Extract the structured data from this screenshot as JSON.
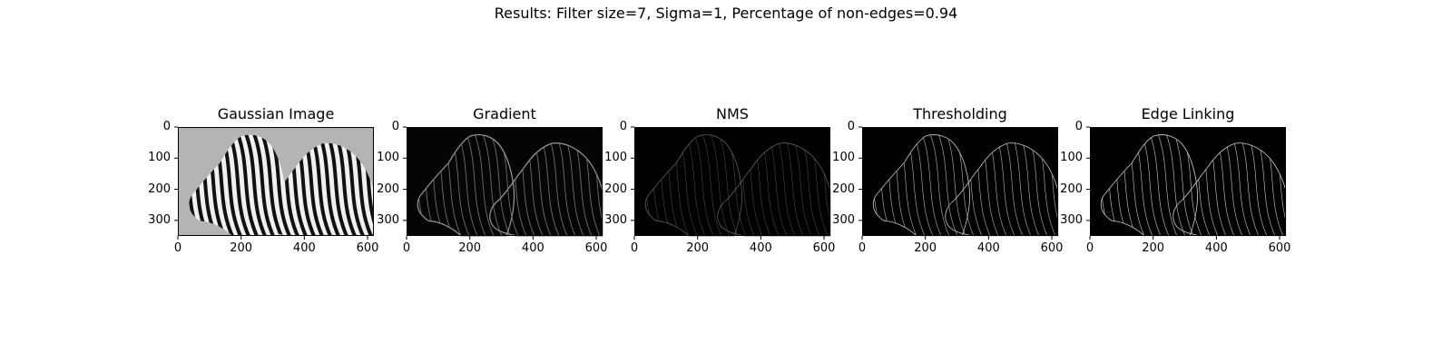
{
  "figure": {
    "suptitle": "Results: Filter size=7, Sigma=1, Percentage of non-edges=0.94",
    "image_width": 620,
    "image_height": 350,
    "x_ticks": [
      "0",
      "200",
      "400",
      "600"
    ],
    "y_ticks": [
      "0",
      "100",
      "200",
      "300"
    ],
    "panels": [
      {
        "title": "Gaussian Image",
        "style": "gray"
      },
      {
        "title": "Gradient",
        "style": "gradient"
      },
      {
        "title": "NMS",
        "style": "nms"
      },
      {
        "title": "Thresholding",
        "style": "threshold"
      },
      {
        "title": "Edge Linking",
        "style": "edge"
      }
    ]
  }
}
